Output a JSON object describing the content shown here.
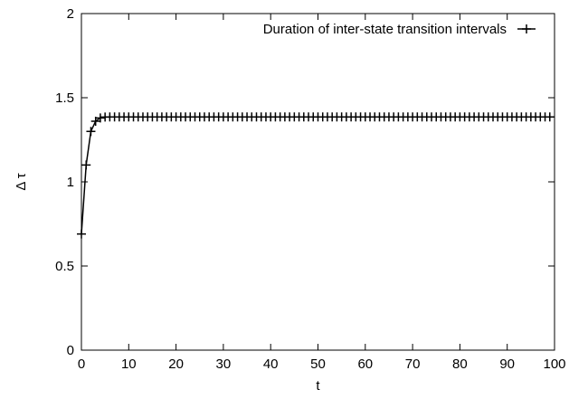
{
  "chart_data": {
    "type": "line",
    "xlabel": "t",
    "ylabel": "Δ τ",
    "xlim": [
      0,
      100
    ],
    "ylim": [
      0,
      2
    ],
    "x_ticks": [
      0,
      10,
      20,
      30,
      40,
      50,
      60,
      70,
      80,
      90,
      100
    ],
    "x_tick_labels": [
      "0",
      "10",
      "20",
      "30",
      "40",
      "50",
      "60",
      "70",
      "80",
      "90",
      "100"
    ],
    "y_ticks": [
      0,
      0.5,
      1,
      1.5,
      2
    ],
    "y_tick_labels": [
      "0",
      "0.5",
      "1",
      "1.5",
      "2"
    ],
    "grid": false,
    "legend_position": "top-right",
    "series": [
      {
        "name": "Duration of inter-state transition intervals",
        "color": "#000000",
        "marker": "plus",
        "x": [
          0,
          1,
          2,
          3,
          4,
          5,
          6,
          7,
          8,
          9,
          10,
          11,
          12,
          13,
          14,
          15,
          16,
          17,
          18,
          19,
          20,
          21,
          22,
          23,
          24,
          25,
          26,
          27,
          28,
          29,
          30,
          31,
          32,
          33,
          34,
          35,
          36,
          37,
          38,
          39,
          40,
          41,
          42,
          43,
          44,
          45,
          46,
          47,
          48,
          49,
          50,
          51,
          52,
          53,
          54,
          55,
          56,
          57,
          58,
          59,
          60,
          61,
          62,
          63,
          64,
          65,
          66,
          67,
          68,
          69,
          70,
          71,
          72,
          73,
          74,
          75,
          76,
          77,
          78,
          79,
          80,
          81,
          82,
          83,
          84,
          85,
          86,
          87,
          88,
          89,
          90,
          91,
          92,
          93,
          94,
          95,
          96,
          97,
          98,
          99
        ],
        "y": [
          0.69,
          1.1,
          1.3,
          1.36,
          1.38,
          1.385,
          1.386,
          1.386,
          1.386,
          1.386,
          1.386,
          1.386,
          1.386,
          1.386,
          1.386,
          1.386,
          1.386,
          1.386,
          1.386,
          1.386,
          1.386,
          1.386,
          1.386,
          1.386,
          1.386,
          1.386,
          1.386,
          1.386,
          1.386,
          1.386,
          1.386,
          1.386,
          1.386,
          1.386,
          1.386,
          1.386,
          1.386,
          1.386,
          1.386,
          1.386,
          1.386,
          1.386,
          1.386,
          1.386,
          1.386,
          1.386,
          1.386,
          1.386,
          1.386,
          1.386,
          1.386,
          1.386,
          1.386,
          1.386,
          1.386,
          1.386,
          1.386,
          1.386,
          1.386,
          1.386,
          1.386,
          1.386,
          1.386,
          1.386,
          1.386,
          1.386,
          1.386,
          1.386,
          1.386,
          1.386,
          1.386,
          1.386,
          1.386,
          1.386,
          1.386,
          1.386,
          1.386,
          1.386,
          1.386,
          1.386,
          1.386,
          1.386,
          1.386,
          1.386,
          1.386,
          1.386,
          1.386,
          1.386,
          1.386,
          1.386,
          1.386,
          1.386,
          1.386,
          1.386,
          1.386,
          1.386,
          1.386,
          1.386,
          1.386,
          1.386
        ]
      }
    ]
  }
}
